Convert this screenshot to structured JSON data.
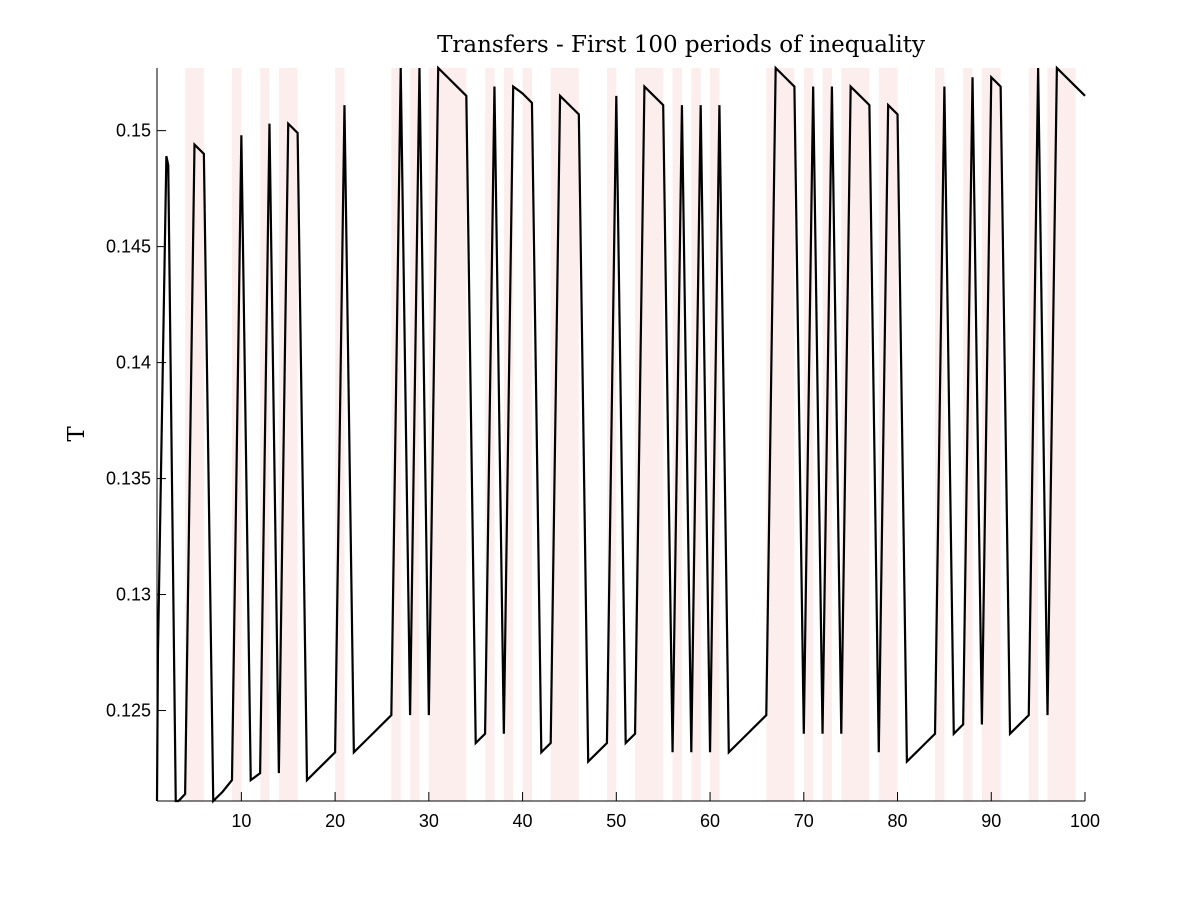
{
  "chart_data": {
    "type": "line",
    "title": "Transfers - First 100 periods of inequality",
    "xlabel": "",
    "ylabel": "T",
    "xlim": [
      1,
      100
    ],
    "ylim": [
      0.1211,
      0.1527
    ],
    "xticks": [
      10,
      20,
      30,
      40,
      50,
      60,
      70,
      80,
      90,
      100
    ],
    "xtick_labels": [
      "10",
      "20",
      "30",
      "40",
      "50",
      "60",
      "70",
      "80",
      "90",
      "100"
    ],
    "yticks": [
      0.125,
      0.13,
      0.135,
      0.14,
      0.145,
      0.15
    ],
    "ytick_labels": [
      "0.125",
      "0.13",
      "0.135",
      "0.14",
      "0.145",
      "0.15"
    ],
    "grid": false,
    "legend": "none",
    "line_color": "#000000",
    "shade_color": "#fdeeee",
    "shaded_periods": [
      [
        4,
        6
      ],
      [
        9,
        10
      ],
      [
        12,
        13
      ],
      [
        14,
        16
      ],
      [
        20,
        21
      ],
      [
        26,
        27
      ],
      [
        28,
        29
      ],
      [
        30,
        34
      ],
      [
        36,
        37
      ],
      [
        38,
        39
      ],
      [
        40,
        41
      ],
      [
        43,
        46
      ],
      [
        49,
        50
      ],
      [
        52,
        55
      ],
      [
        56,
        57
      ],
      [
        58,
        59
      ],
      [
        60,
        61
      ],
      [
        66,
        69
      ],
      [
        70,
        71
      ],
      [
        72,
        73
      ],
      [
        74,
        77
      ],
      [
        78,
        80
      ],
      [
        84,
        85
      ],
      [
        87,
        88
      ],
      [
        89,
        91
      ],
      [
        94,
        95
      ],
      [
        96,
        99
      ]
    ],
    "series": [
      {
        "x": [
          1,
          1.1,
          2,
          2.2,
          3,
          3.3,
          4,
          5,
          6,
          7,
          8,
          9,
          10,
          11,
          12,
          13,
          14,
          15,
          16,
          17,
          18,
          19,
          20,
          21,
          22,
          23,
          24,
          25,
          26,
          27,
          28,
          29,
          30,
          31,
          32,
          33,
          34,
          35,
          36,
          37,
          38,
          39,
          40,
          41,
          42,
          43,
          44,
          45,
          46,
          47,
          48,
          49,
          50,
          51,
          52,
          53,
          54,
          55,
          56,
          57,
          58,
          59,
          60,
          61,
          62,
          63,
          64,
          65,
          66,
          67,
          68,
          69,
          70,
          71,
          72,
          73,
          74,
          75,
          76,
          77,
          78,
          79,
          80,
          81,
          82,
          83,
          84,
          85,
          86,
          87,
          88,
          89,
          90,
          91,
          92,
          93,
          94,
          95,
          96,
          97,
          98,
          99,
          100
        ],
        "y": [
          0.1211,
          0.1275,
          0.1489,
          0.1485,
          0.1211,
          0.1211,
          0.1214,
          0.1494,
          0.149,
          0.1211,
          0.1215,
          0.122,
          0.1498,
          0.122,
          0.1223,
          0.1503,
          0.1223,
          0.1503,
          0.1499,
          0.122,
          0.1224,
          0.1228,
          0.1232,
          0.1511,
          0.1232,
          0.1236,
          0.124,
          0.1244,
          0.1248,
          0.1527,
          0.1248,
          0.1527,
          0.1248,
          0.1527,
          0.1523,
          0.1519,
          0.1515,
          0.1236,
          0.124,
          0.1519,
          0.124,
          0.1519,
          0.1516,
          0.1512,
          0.1232,
          0.1236,
          0.1515,
          0.1511,
          0.1507,
          0.1228,
          0.1232,
          0.1236,
          0.1515,
          0.1236,
          0.124,
          0.1519,
          0.1515,
          0.1511,
          0.1232,
          0.1511,
          0.1232,
          0.1511,
          0.1232,
          0.1511,
          0.1232,
          0.1236,
          0.124,
          0.1244,
          0.1248,
          0.1527,
          0.1523,
          0.1519,
          0.124,
          0.1519,
          0.124,
          0.1519,
          0.124,
          0.1519,
          0.1515,
          0.1511,
          0.1232,
          0.1511,
          0.1507,
          0.1228,
          0.1232,
          0.1236,
          0.124,
          0.1519,
          0.124,
          0.1244,
          0.1523,
          0.1244,
          0.1523,
          0.1519,
          0.124,
          0.1244,
          0.1248,
          0.1527,
          0.1248,
          0.1527,
          0.1523,
          0.1519,
          0.1515
        ]
      }
    ]
  }
}
